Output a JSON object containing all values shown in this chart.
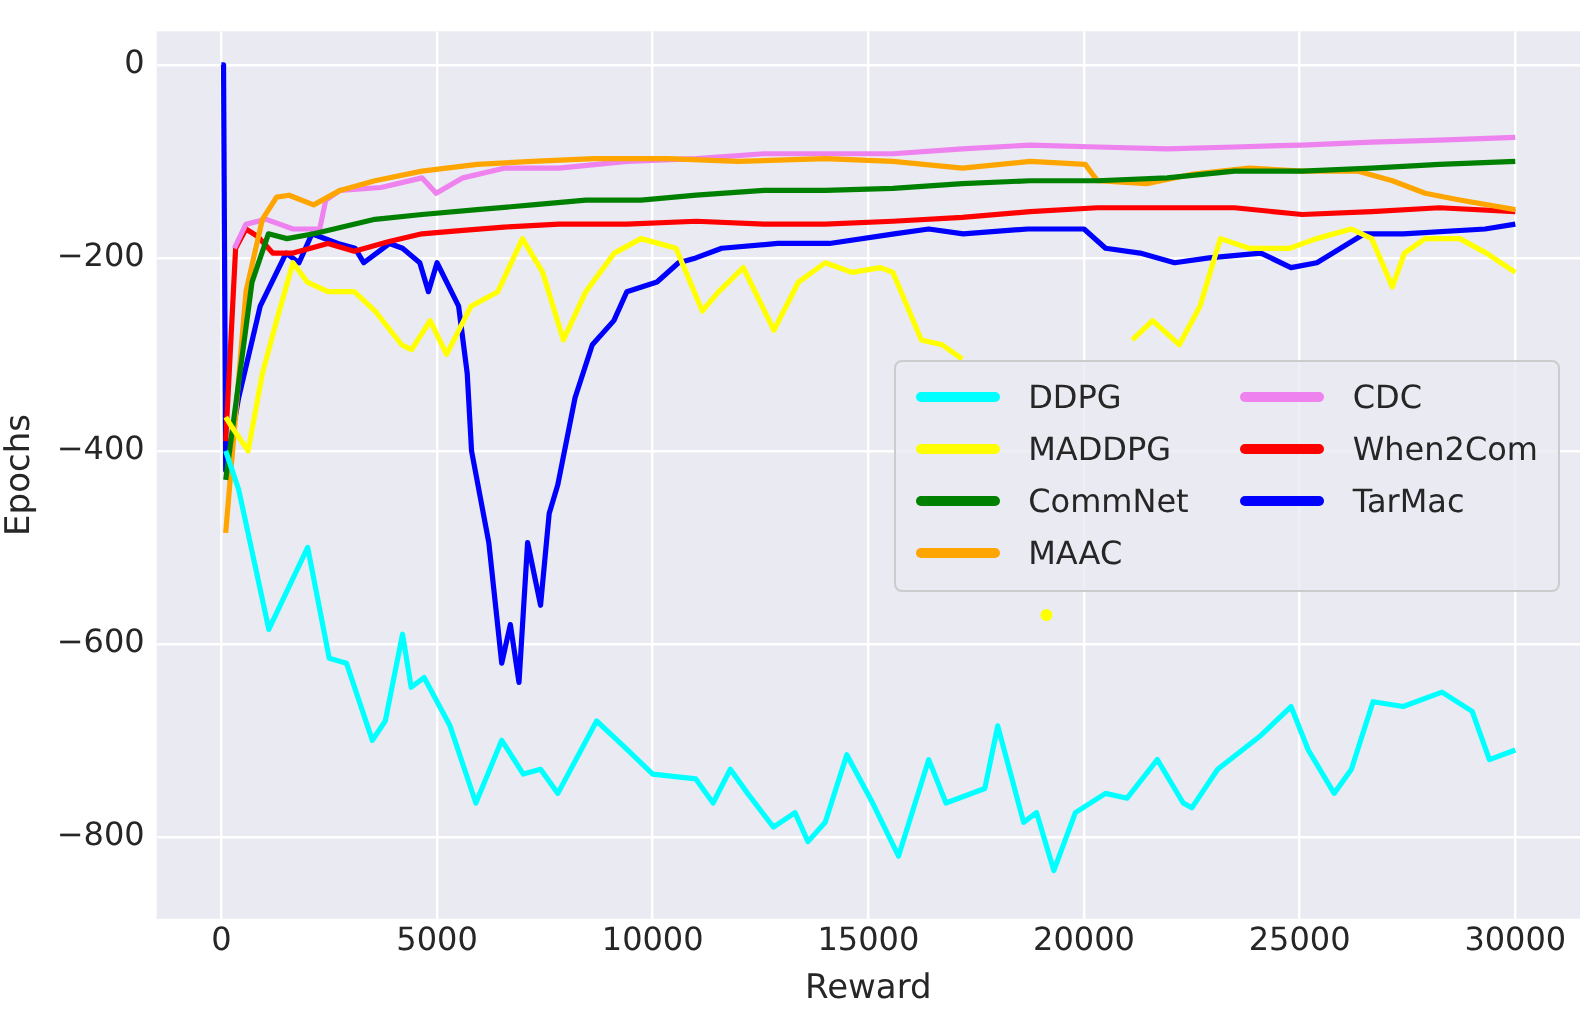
{
  "chart_data": {
    "type": "line",
    "xlabel": "Reward",
    "ylabel": "Epochs",
    "xlim": [
      -1500,
      31500
    ],
    "ylim": [
      -885,
      35
    ],
    "xticks": [
      0,
      5000,
      10000,
      15000,
      20000,
      25000,
      30000
    ],
    "yticks": [
      -800,
      -600,
      -400,
      -200,
      0
    ],
    "grid": true,
    "legend": "center right",
    "line_style": "solid",
    "marker": "none",
    "series": [
      {
        "name": "DDPG",
        "color": "#00ffff",
        "x": [
          100,
          400,
          1100,
          2000,
          2500,
          2900,
          3500,
          3800,
          4200,
          4400,
          4700,
          5300,
          5900,
          6500,
          7000,
          7400,
          7800,
          8700,
          9300,
          10000,
          11000,
          11400,
          11800,
          12200,
          12800,
          13300,
          13600,
          14000,
          14500,
          15100,
          15700,
          16400,
          16800,
          17700,
          18000,
          18600,
          18900,
          19300,
          19800,
          20500,
          21000,
          21700,
          22300,
          22500,
          23100,
          24100,
          24800,
          25200,
          25800,
          26200,
          26700,
          27400,
          28300,
          29000,
          29400,
          30000
        ],
        "values": [
          -400,
          -440,
          -585,
          -500,
          -615,
          -620,
          -700,
          -680,
          -590,
          -645,
          -635,
          -685,
          -765,
          -700,
          -735,
          -730,
          -755,
          -680,
          -705,
          -735,
          -740,
          -765,
          -730,
          -755,
          -790,
          -775,
          -805,
          -785,
          -715,
          -765,
          -820,
          -720,
          -765,
          -750,
          -685,
          -785,
          -775,
          -835,
          -775,
          -755,
          -760,
          -720,
          -765,
          -770,
          -730,
          -695,
          -665,
          -710,
          -755,
          -730,
          -660,
          -665,
          -650,
          -670,
          -720,
          -710
        ]
      },
      {
        "name": "MADDPG",
        "color": "#ffff00",
        "x": [
          100,
          240,
          620,
          950,
          1280,
          1660,
          1990,
          2470,
          3080,
          3560,
          4180,
          4410,
          4840,
          5220,
          5790,
          6410,
          6980,
          7450,
          7930,
          8450,
          9110,
          9730,
          10540,
          11150,
          11530,
          12100,
          12810,
          13380,
          14000,
          14620,
          15280,
          15570,
          16230,
          16710,
          17180,
          17660,
          18130,
          18370,
          18750,
          19130,
          19460,
          20030,
          20650,
          21120,
          21590,
          22210,
          22690,
          23160,
          23830,
          24770,
          25390,
          26200,
          26670,
          27150,
          27430,
          27910,
          28710,
          29330,
          30000
        ],
        "values": [
          -365,
          -375,
          -400,
          -320,
          -265,
          -205,
          -225,
          -235,
          -235,
          -255,
          -290,
          -295,
          -265,
          -300,
          -250,
          -235,
          -180,
          -215,
          -285,
          -235,
          -195,
          -180,
          -190,
          -255,
          -235,
          -210,
          -275,
          -225,
          -205,
          -215,
          -210,
          -215,
          -285,
          -290,
          -305,
          null,
          null,
          null,
          null,
          -570,
          null,
          null,
          null,
          -285,
          -265,
          -290,
          -250,
          -180,
          -190,
          -190,
          -180,
          -170,
          -180,
          -230,
          -195,
          -180,
          -180,
          -195,
          -215
        ]
      },
      {
        "name": "CommNet",
        "color": "#008000",
        "x": [
          100,
          710,
          1090,
          1520,
          2140,
          2610,
          3560,
          4650,
          5930,
          7210,
          8450,
          9730,
          11010,
          12580,
          14000,
          15570,
          17180,
          18750,
          20310,
          21930,
          23490,
          25060,
          26670,
          28240,
          30000
        ],
        "values": [
          -430,
          -225,
          -175,
          -180,
          -175,
          -170,
          -160,
          -155,
          -150,
          -145,
          -140,
          -140,
          -135,
          -130,
          -130,
          -128,
          -123,
          -120,
          -120,
          -117,
          -110,
          -110,
          -107,
          -103,
          -100
        ]
      },
      {
        "name": "MAAC",
        "color": "#ffa500",
        "x": [
          100,
          570,
          950,
          1280,
          1570,
          2140,
          2750,
          3560,
          4650,
          5930,
          7210,
          8640,
          10350,
          11960,
          14000,
          15570,
          17180,
          18750,
          20030,
          20310,
          21450,
          22540,
          23830,
          25060,
          26340,
          27150,
          27910,
          28710,
          30000
        ],
        "values": [
          -485,
          -235,
          -160,
          -137,
          -135,
          -145,
          -130,
          -120,
          -110,
          -103,
          -100,
          -97,
          -97,
          -100,
          -97,
          -100,
          -107,
          -100,
          -103,
          -120,
          -123,
          -113,
          -107,
          -110,
          -110,
          -120,
          -133,
          -140,
          -150
        ]
      },
      {
        "name": "CDC",
        "color": "#ee82ee",
        "x": [
          300,
          570,
          1040,
          1660,
          2280,
          2420,
          2750,
          3700,
          4650,
          4980,
          5600,
          6550,
          7830,
          9400,
          11010,
          12580,
          14000,
          15570,
          17180,
          18750,
          20310,
          21930,
          23490,
          25060,
          26670,
          28240,
          30000
        ],
        "values": [
          -190,
          -165,
          -160,
          -170,
          -170,
          -140,
          -130,
          -127,
          -117,
          -133,
          -117,
          -107,
          -107,
          -100,
          -97,
          -92,
          -92,
          -92,
          -87,
          -83,
          -85,
          -87,
          -85,
          -83,
          -80,
          -78,
          -75
        ]
      },
      {
        "name": "When2Com",
        "color": "#ff0000",
        "x": [
          100,
          330,
          570,
          850,
          1190,
          1660,
          2470,
          3080,
          3890,
          4650,
          5460,
          6550,
          7830,
          9400,
          11010,
          12580,
          14000,
          15570,
          17180,
          18750,
          20310,
          21930,
          23490,
          25060,
          26670,
          28240,
          30000
        ],
        "values": [
          -390,
          -190,
          -170,
          -178,
          -195,
          -195,
          -185,
          -193,
          -183,
          -175,
          -172,
          -168,
          -165,
          -165,
          -162,
          -165,
          -165,
          -162,
          -158,
          -152,
          -148,
          -148,
          -148,
          -155,
          -152,
          -148,
          -152
        ]
      },
      {
        "name": "TarMac",
        "color": "#0000ff",
        "x": [
          0,
          50,
          100,
          400,
          900,
          1500,
          1800,
          2100,
          2700,
          3100,
          3300,
          3900,
          4200,
          4600,
          4800,
          5000,
          5500,
          5700,
          5800,
          6200,
          6500,
          6700,
          6900,
          7100,
          7400,
          7600,
          7800,
          8200,
          8600,
          9100,
          9400,
          10100,
          10600,
          11000,
          11600,
          12900,
          14100,
          15600,
          16400,
          17200,
          18700,
          20000,
          20500,
          21300,
          22100,
          22900,
          24100,
          24800,
          25400,
          26500,
          27400,
          29300,
          30000
        ],
        "values": [
          0,
          0,
          -420,
          -345,
          -250,
          -195,
          -205,
          -175,
          -185,
          -190,
          -205,
          -185,
          -190,
          -205,
          -235,
          -205,
          -250,
          -320,
          -400,
          -495,
          -620,
          -580,
          -640,
          -495,
          -560,
          -465,
          -435,
          -345,
          -290,
          -265,
          -235,
          -225,
          -205,
          -200,
          -190,
          -185,
          -185,
          -175,
          -170,
          -175,
          -170,
          -170,
          -190,
          -195,
          -205,
          -200,
          -195,
          -210,
          -205,
          -175,
          -175,
          -170,
          -165
        ]
      }
    ]
  }
}
